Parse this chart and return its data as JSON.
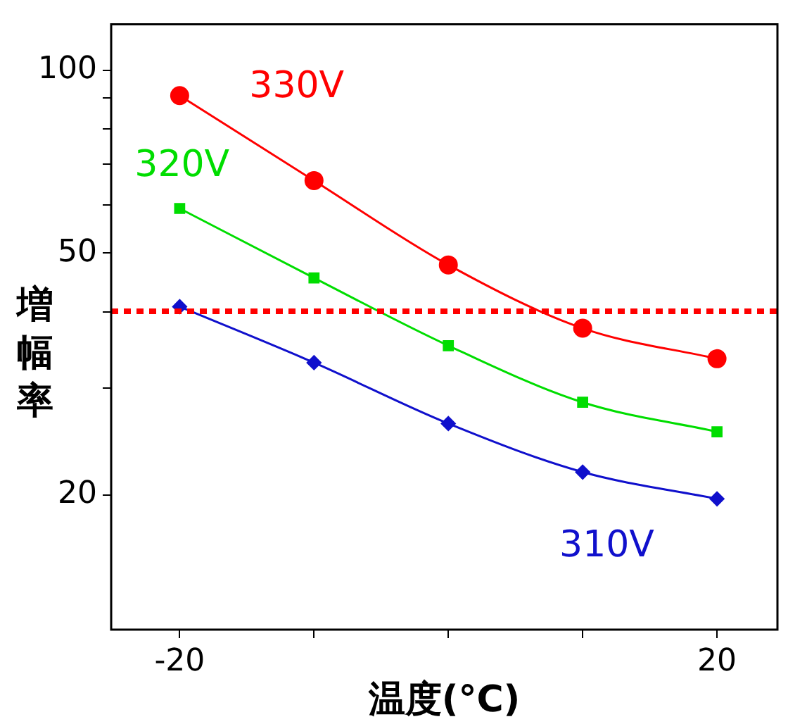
{
  "chart_data": {
    "type": "line",
    "xlabel": "温度(°C)",
    "ylabel": "増幅率",
    "log": "y",
    "x": [
      -20,
      -10,
      0,
      10,
      20
    ],
    "xlim": [
      -25.1,
      24.5
    ],
    "xticks": [
      -20,
      {
        "value": -10,
        "label": null
      },
      {
        "value": 0,
        "label": null
      },
      {
        "value": 10,
        "label": null
      },
      20
    ],
    "ylim": [
      12,
      119
    ],
    "yticks": [
      20,
      {
        "value": 30,
        "label": null
      },
      {
        "value": 40,
        "label": null
      },
      50,
      {
        "value": 60,
        "label": null
      },
      {
        "value": 70,
        "label": null
      },
      {
        "value": 80,
        "label": null
      },
      {
        "value": 90,
        "label": null
      },
      100
    ],
    "grid": false,
    "legend": false,
    "line_style": "solid",
    "series": [
      {
        "name": "330V",
        "color": "#ff0000",
        "marker": "circle",
        "values": [
          90.8,
          65.8,
          47.8,
          37.6,
          33.5
        ]
      },
      {
        "name": "320V",
        "color": "#00dd00",
        "marker": "square",
        "values": [
          59.2,
          45.5,
          35.2,
          28.4,
          25.4
        ]
      },
      {
        "name": "310V",
        "color": "#1010cc",
        "marker": "diamond",
        "values": [
          40.8,
          33.0,
          26.2,
          21.8,
          19.7
        ]
      }
    ],
    "ref_lines": [
      {
        "axis": "y",
        "value": 40.1,
        "color": "#ff0000",
        "line_style": "dotted"
      }
    ]
  }
}
